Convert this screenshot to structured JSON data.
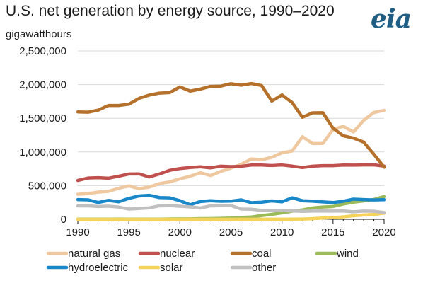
{
  "header": {
    "title": "U.S. net generation by energy source, 1990–2020",
    "unit_label": "gigawatthours",
    "logo_text": "eia",
    "logo_color": "#1f5d84"
  },
  "chart_data": {
    "type": "line",
    "title": "U.S. net generation by energy source, 1990–2020",
    "ylabel": "gigawatthours",
    "xlabel": "",
    "xlim": [
      1990,
      2020
    ],
    "ylim": [
      0,
      2500000
    ],
    "x_ticks": [
      1990,
      1995,
      2000,
      2005,
      2010,
      2015,
      2020
    ],
    "y_ticks": [
      0,
      500000,
      1000000,
      1500000,
      2000000,
      2500000
    ],
    "y_tick_labels": [
      "0",
      "500,000",
      "1,000,000",
      "1,500,000",
      "2,000,000",
      "2,500,000"
    ],
    "grid": "horizontal",
    "legend_position": "bottom",
    "x": [
      1990,
      1991,
      1992,
      1993,
      1994,
      1995,
      1996,
      1997,
      1998,
      1999,
      2000,
      2001,
      2002,
      2003,
      2004,
      2005,
      2006,
      2007,
      2008,
      2009,
      2010,
      2011,
      2012,
      2013,
      2014,
      2015,
      2016,
      2017,
      2018,
      2019,
      2020
    ],
    "series": [
      {
        "name": "natural gas",
        "color": "#f0c8a0",
        "values": [
          372000,
          382000,
          404000,
          415000,
          461000,
          496000,
          455000,
          479000,
          531000,
          556000,
          601000,
          639000,
          691000,
          650000,
          711000,
          761000,
          817000,
          897000,
          883000,
          921000,
          988000,
          1014000,
          1226000,
          1125000,
          1127000,
          1335000,
          1380000,
          1297000,
          1470000,
          1586000,
          1617000
        ]
      },
      {
        "name": "nuclear",
        "color": "#c0504d",
        "values": [
          577000,
          613000,
          619000,
          610000,
          640000,
          673000,
          675000,
          629000,
          674000,
          728000,
          754000,
          769000,
          780000,
          764000,
          789000,
          782000,
          787000,
          806000,
          806000,
          799000,
          807000,
          790000,
          769000,
          789000,
          797000,
          797000,
          806000,
          805000,
          807000,
          809000,
          790000
        ]
      },
      {
        "name": "coal",
        "color": "#b5712b",
        "values": [
          1594000,
          1590000,
          1621000,
          1690000,
          1690000,
          1709000,
          1796000,
          1845000,
          1874000,
          1881000,
          1966000,
          1904000,
          1933000,
          1974000,
          1978000,
          2013000,
          1991000,
          2016000,
          1986000,
          1756000,
          1847000,
          1733000,
          1514000,
          1581000,
          1582000,
          1352000,
          1240000,
          1206000,
          1146000,
          965000,
          774000
        ]
      },
      {
        "name": "wind",
        "color": "#9bbb59",
        "values": [
          3000,
          3000,
          3000,
          3000,
          4000,
          3000,
          3000,
          3000,
          3000,
          5000,
          6000,
          7000,
          10000,
          11000,
          14000,
          18000,
          27000,
          34000,
          55000,
          74000,
          95000,
          120000,
          140000,
          168000,
          182000,
          191000,
          227000,
          254000,
          273000,
          295000,
          338000
        ]
      },
      {
        "name": "hydroelectric",
        "color": "#1a87c9",
        "values": [
          293000,
          289000,
          250000,
          281000,
          260000,
          311000,
          347000,
          356000,
          323000,
          319000,
          276000,
          217000,
          264000,
          276000,
          268000,
          270000,
          289000,
          247000,
          254000,
          273000,
          260000,
          319000,
          276000,
          269000,
          259000,
          249000,
          268000,
          300000,
          293000,
          287000,
          291000
        ]
      },
      {
        "name": "solar",
        "color": "#f5d35a",
        "values": [
          0,
          0,
          0,
          0,
          0,
          0,
          0,
          0,
          0,
          0,
          0,
          1000,
          1000,
          1000,
          1000,
          1000,
          1000,
          1000,
          1000,
          1000,
          1000,
          2000,
          4000,
          9000,
          18000,
          25000,
          36000,
          53000,
          64000,
          72000,
          91000
        ]
      },
      {
        "name": "other",
        "color": "#c0c0c0",
        "values": [
          199000,
          200000,
          190000,
          195000,
          182000,
          152000,
          160000,
          170000,
          200000,
          203000,
          194000,
          185000,
          168000,
          200000,
          202000,
          205000,
          152000,
          150000,
          133000,
          128000,
          130000,
          125000,
          118000,
          122000,
          124000,
          122000,
          123000,
          112000,
          122000,
          120000,
          100000
        ]
      }
    ]
  }
}
